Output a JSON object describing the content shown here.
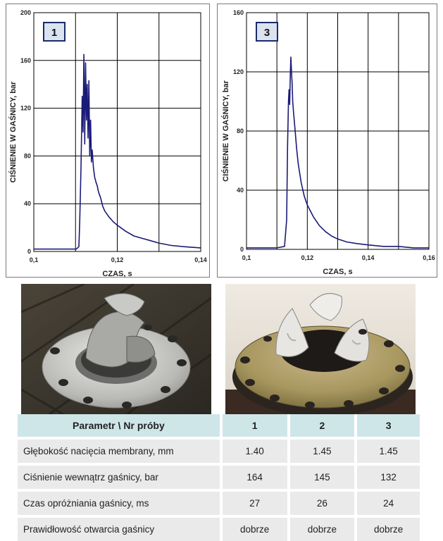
{
  "chart_data": [
    {
      "type": "line",
      "badge": "1",
      "xlabel": "CZAS, s",
      "ylabel": "CIŚNIENIE W GAŚNICY, bar",
      "xlim": [
        0.1,
        0.14
      ],
      "ylim": [
        0,
        200
      ],
      "x_ticks": [
        "0,1",
        "0,12",
        "0,14"
      ],
      "y_ticks": [
        "0",
        "40",
        "80",
        "120",
        "160",
        "200"
      ],
      "grid": true,
      "line_color": "#1a1a78",
      "series": [
        {
          "x": [
            0.1,
            0.105,
            0.108,
            0.1102,
            0.1108,
            0.111,
            0.1113,
            0.1116,
            0.1118,
            0.112,
            0.1122,
            0.1124,
            0.1126,
            0.1128,
            0.113,
            0.1132,
            0.1134,
            0.1136,
            0.1138,
            0.114,
            0.1143,
            0.1146,
            0.1149,
            0.1152,
            0.1155,
            0.116,
            0.1165,
            0.117,
            0.118,
            0.119,
            0.12,
            0.122,
            0.124,
            0.126,
            0.128,
            0.13,
            0.133,
            0.136,
            0.14
          ],
          "y": [
            2,
            2,
            2,
            2,
            4,
            25,
            70,
            130,
            100,
            165,
            90,
            158,
            110,
            140,
            95,
            143,
            80,
            110,
            75,
            85,
            70,
            62,
            58,
            55,
            50,
            45,
            38,
            34,
            29,
            25,
            22,
            17,
            13,
            11,
            9,
            7,
            5,
            4,
            3
          ]
        }
      ]
    },
    {
      "type": "line",
      "badge": "3",
      "xlabel": "CZAS, s",
      "ylabel": "CIŚNIENIE W GAŚNICY, bar",
      "xlim": [
        0.1,
        0.16
      ],
      "ylim": [
        0,
        160
      ],
      "x_ticks": [
        "0,1",
        "0,12",
        "0,14",
        "0,16"
      ],
      "y_ticks": [
        "0",
        "40",
        "80",
        "120",
        "160"
      ],
      "grid": true,
      "line_color": "#1a1a78",
      "series": [
        {
          "x": [
            0.1,
            0.105,
            0.11,
            0.1125,
            0.1132,
            0.1135,
            0.1138,
            0.114,
            0.1142,
            0.1144,
            0.1146,
            0.1148,
            0.115,
            0.1152,
            0.1155,
            0.116,
            0.1165,
            0.117,
            0.118,
            0.119,
            0.12,
            0.122,
            0.124,
            0.126,
            0.128,
            0.13,
            0.133,
            0.136,
            0.14,
            0.145,
            0.15,
            0.155,
            0.16
          ],
          "y": [
            1,
            1,
            1,
            2,
            20,
            70,
            100,
            108,
            98,
            118,
            130,
            120,
            112,
            100,
            92,
            80,
            68,
            58,
            45,
            36,
            30,
            22,
            16,
            12,
            9,
            7,
            5,
            4,
            3,
            2,
            2,
            1,
            1
          ]
        }
      ]
    }
  ],
  "photos": [
    {
      "icon": "torn-metal-membrane-flange-photo"
    },
    {
      "icon": "petal-opened-membrane-on-yellow-flange-photo"
    }
  ],
  "table": {
    "headers": [
      "Parametr \\ Nr próby",
      "1",
      "2",
      "3"
    ],
    "rows": [
      {
        "label": "Głębokość nacięcia membrany,  mm",
        "values": [
          "1.40",
          "1.45",
          "1.45"
        ]
      },
      {
        "label": "Ciśnienie wewnątrz gaśnicy,  bar",
        "values": [
          "164",
          "145",
          "132"
        ]
      },
      {
        "label": "Czas opróżniania gaśnicy,  ms",
        "values": [
          "27",
          "26",
          "24"
        ]
      },
      {
        "label": "Prawidłowość otwarcia gaśnicy",
        "values": [
          "dobrze",
          "dobrze",
          "dobrze"
        ]
      }
    ]
  },
  "colors": {
    "table_header": "#cfe6e9",
    "table_shade": "#eaeaea",
    "badge_fill": "#dbe3f0",
    "badge_border": "#1a2a6a"
  }
}
